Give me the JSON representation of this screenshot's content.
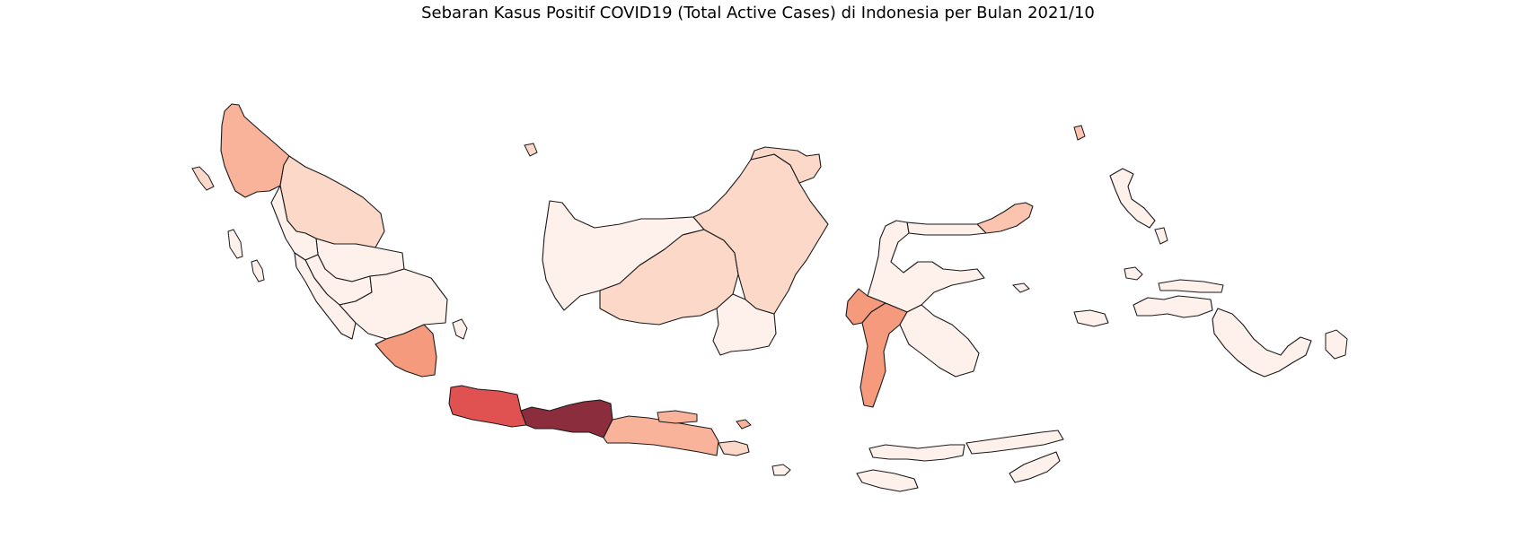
{
  "title": "Sebaran Kasus Positif COVID19 (Total Active Cases) di Indonesia per Bulan 2021/10",
  "colors": {
    "background": "#ffffff",
    "outline": "#1a1a1a",
    "very_low": "#fef0ea",
    "low": "#fcd8c9",
    "low_mid": "#fbc4ae",
    "mid": "#f9b39a",
    "mid_high": "#f59a7c",
    "high": "#e05252",
    "highest": "#8b2d3c"
  },
  "regions": [
    {
      "name": "Aceh",
      "level": "mid"
    },
    {
      "name": "Sumatera Utara",
      "level": "low"
    },
    {
      "name": "Riau",
      "level": "very_low"
    },
    {
      "name": "Sumatera Barat",
      "level": "very_low"
    },
    {
      "name": "Jambi",
      "level": "very_low"
    },
    {
      "name": "Bengkulu",
      "level": "very_low"
    },
    {
      "name": "Sumatera Selatan",
      "level": "very_low"
    },
    {
      "name": "Lampung",
      "level": "mid_high"
    },
    {
      "name": "Jawa Barat",
      "level": "high"
    },
    {
      "name": "Jawa Tengah",
      "level": "highest"
    },
    {
      "name": "Jawa Timur",
      "level": "mid"
    },
    {
      "name": "Bali",
      "level": "low"
    },
    {
      "name": "Kalimantan Barat",
      "level": "very_low"
    },
    {
      "name": "Kalimantan Tengah",
      "level": "low"
    },
    {
      "name": "Kalimantan Selatan",
      "level": "very_low"
    },
    {
      "name": "Kalimantan Timur",
      "level": "low"
    },
    {
      "name": "Kalimantan Utara",
      "level": "low"
    },
    {
      "name": "Sulawesi Utara",
      "level": "low_mid"
    },
    {
      "name": "Gorontalo",
      "level": "very_low"
    },
    {
      "name": "Sulawesi Tengah",
      "level": "very_low"
    },
    {
      "name": "Sulawesi Selatan",
      "level": "mid_high"
    },
    {
      "name": "Sulawesi Barat",
      "level": "mid_high"
    },
    {
      "name": "Sulawesi Tenggara",
      "level": "very_low"
    },
    {
      "name": "Nusa Tenggara Barat",
      "level": "very_low"
    },
    {
      "name": "Nusa Tenggara Timur",
      "level": "very_low"
    },
    {
      "name": "Maluku",
      "level": "very_low"
    },
    {
      "name": "Maluku Utara",
      "level": "very_low"
    },
    {
      "name": "Papua Barat",
      "level": "very_low"
    },
    {
      "name": "Papua",
      "level": "very_low"
    }
  ]
}
